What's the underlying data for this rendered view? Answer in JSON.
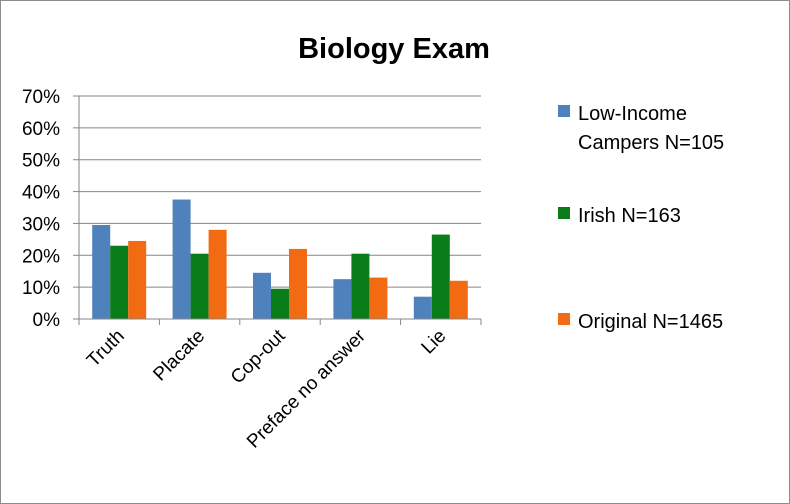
{
  "chart_data": {
    "type": "bar",
    "title": "Biology Exam",
    "categories": [
      "Truth",
      "Placate",
      "Cop-out",
      "Preface no answer",
      "Lie"
    ],
    "series": [
      {
        "name": "Low-Income Campers N=105",
        "color": "#4f81bd",
        "values": [
          29.5,
          37.5,
          14.5,
          12.5,
          7
        ]
      },
      {
        "name": "Irish N=163",
        "color": "#0a7c1a",
        "values": [
          23,
          20.5,
          9.5,
          20.5,
          26.5
        ]
      },
      {
        "name": "Original N=1465",
        "color": "#f26b13",
        "values": [
          24.5,
          28,
          22,
          13,
          12
        ]
      }
    ],
    "ylim": [
      0,
      70
    ],
    "yticks": [
      "0%",
      "10%",
      "20%",
      "30%",
      "40%",
      "50%",
      "60%",
      "70%"
    ],
    "y_unit": "percent",
    "grid": true,
    "legend_position": "right"
  }
}
